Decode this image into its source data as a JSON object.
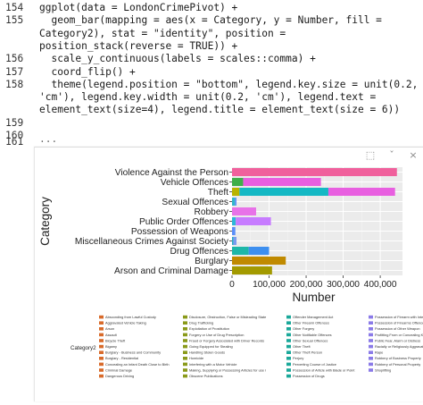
{
  "code": {
    "lines": [
      {
        "num": "154",
        "text": "ggplot(data = LondonCrimePivot) +"
      },
      {
        "num": "155",
        "text": "  geom_bar(mapping = aes(x = Category, y = Number, fill ="
      },
      {
        "num": "",
        "text": "Category2), stat = \"identity\", position ="
      },
      {
        "num": "",
        "text": "position_stack(reverse = TRUE)) +"
      },
      {
        "num": "156",
        "text": "  scale_y_continuous(labels = scales::comma) +"
      },
      {
        "num": "157",
        "text": "  coord_flip() +"
      },
      {
        "num": "158",
        "text": "  theme(legend.position = \"bottom\", legend.key.size = unit(0.2,"
      },
      {
        "num": "",
        "text": "'cm'), legend.key.width = unit(0.2, 'cm'), legend.text ="
      },
      {
        "num": "",
        "text": "element_text(size=4), legend.title = element_text(size = 6))"
      },
      {
        "num": "159",
        "text": ""
      },
      {
        "num": "160",
        "text": ""
      },
      {
        "num": "161",
        "text": "···"
      }
    ]
  },
  "toolbar": {
    "export_icon": "⬚",
    "expand_icon": "ˇ",
    "close_icon": "×"
  },
  "chart_data": {
    "type": "bar",
    "orientation": "horizontal",
    "stacked": true,
    "xlabel": "Number",
    "ylabel": "Category",
    "xlim": [
      0,
      460000
    ],
    "xticks": [
      "0",
      "100,000",
      "200,000",
      "300,000",
      "400,000"
    ],
    "xtick_values": [
      0,
      100000,
      200000,
      300000,
      400000
    ],
    "categories": [
      "Violence Against the Person",
      "Vehicle Offences",
      "Theft",
      "Sexual Offences",
      "Robbery",
      "Public Order Offences",
      "Possession of Weapons",
      "Miscellaneous Crimes Against Society",
      "Drug Offences",
      "Burglary",
      "Arson and Criminal Damage"
    ],
    "segments": [
      [
        {
          "value": 445000,
          "color": "#f0609c"
        }
      ],
      [
        {
          "value": 30000,
          "color": "#3fae49"
        },
        {
          "value": 210000,
          "color": "#e85fe0"
        }
      ],
      [
        {
          "value": 20000,
          "color": "#b9b300"
        },
        {
          "value": 240000,
          "color": "#14b8c4"
        },
        {
          "value": 180000,
          "color": "#e85fe0"
        }
      ],
      [
        {
          "value": 8000,
          "color": "#31b7c9"
        },
        {
          "value": 4000,
          "color": "#5b8ff9"
        }
      ],
      [
        {
          "value": 65000,
          "color": "#e872e8"
        }
      ],
      [
        {
          "value": 10000,
          "color": "#2db8d8"
        },
        {
          "value": 95000,
          "color": "#c77cff"
        }
      ],
      [
        {
          "value": 9000,
          "color": "#5b8ff9"
        }
      ],
      [
        {
          "value": 4000,
          "color": "#2aa9c4"
        },
        {
          "value": 8000,
          "color": "#7a9af0"
        }
      ],
      [
        {
          "value": 45000,
          "color": "#1eb7a8"
        },
        {
          "value": 55000,
          "color": "#3d8fef"
        }
      ],
      [
        {
          "value": 145000,
          "color": "#c08a00"
        }
      ],
      [
        {
          "value": 108000,
          "color": "#a39a00"
        }
      ]
    ],
    "legend": {
      "title": "Category2",
      "position": "bottom",
      "columns": [
        {
          "color": "#d86a2a",
          "items": [
            "Absconding from Lawful Custody",
            "Aggravated Vehicle Taking",
            "Arson",
            "Assault",
            "Bicycle Theft",
            "Bigamy",
            "Burglary - Business and Community",
            "Burglary - Residential",
            "Concealing an Infant Death Close to Birth",
            "Criminal Damage",
            "Dangerous Driving"
          ]
        },
        {
          "color": "#8a9a1a",
          "items": [
            "Disclosure, Obstruction, False or Misleading State",
            "Drug Trafficking",
            "Exploitation of Prostitution",
            "Forgery or Use of Drug Prescription",
            "Fraud or Forgery Associated with Driver Records",
            "Going Equipped for Stealing",
            "Handling Stolen Goods",
            "Homicide",
            "Interfering with a Motor Vehicle",
            "Making, Supplying or Possessing Articles for use i",
            "Obscene Publications"
          ]
        },
        {
          "color": "#1aa89a",
          "items": [
            "Offender Management Act",
            "Other Firearm Offences",
            "Other Forgery",
            "Other Notifiable Offences",
            "Other Sexual Offences",
            "Other Theft",
            "Other Theft Person",
            "Perjury",
            "Perverting Course of Justice",
            "Possession of Article with Blade or Point",
            "Possession of Drugs"
          ]
        },
        {
          "color": "#8a7ae8",
          "items": [
            "Possession of Firearm with Intent",
            "Possession of Firearms Offences",
            "Possession of Other Weapon",
            "Profitting From or Concealing Knowledge of the Proc",
            "Public Fear, Alarm or Distress",
            "Racially or Religiously Aggravated Public Fear, Ala",
            "Rape",
            "Robbery of Business Property",
            "Robbery of Personal Property",
            "Shoplifting"
          ]
        }
      ]
    }
  }
}
